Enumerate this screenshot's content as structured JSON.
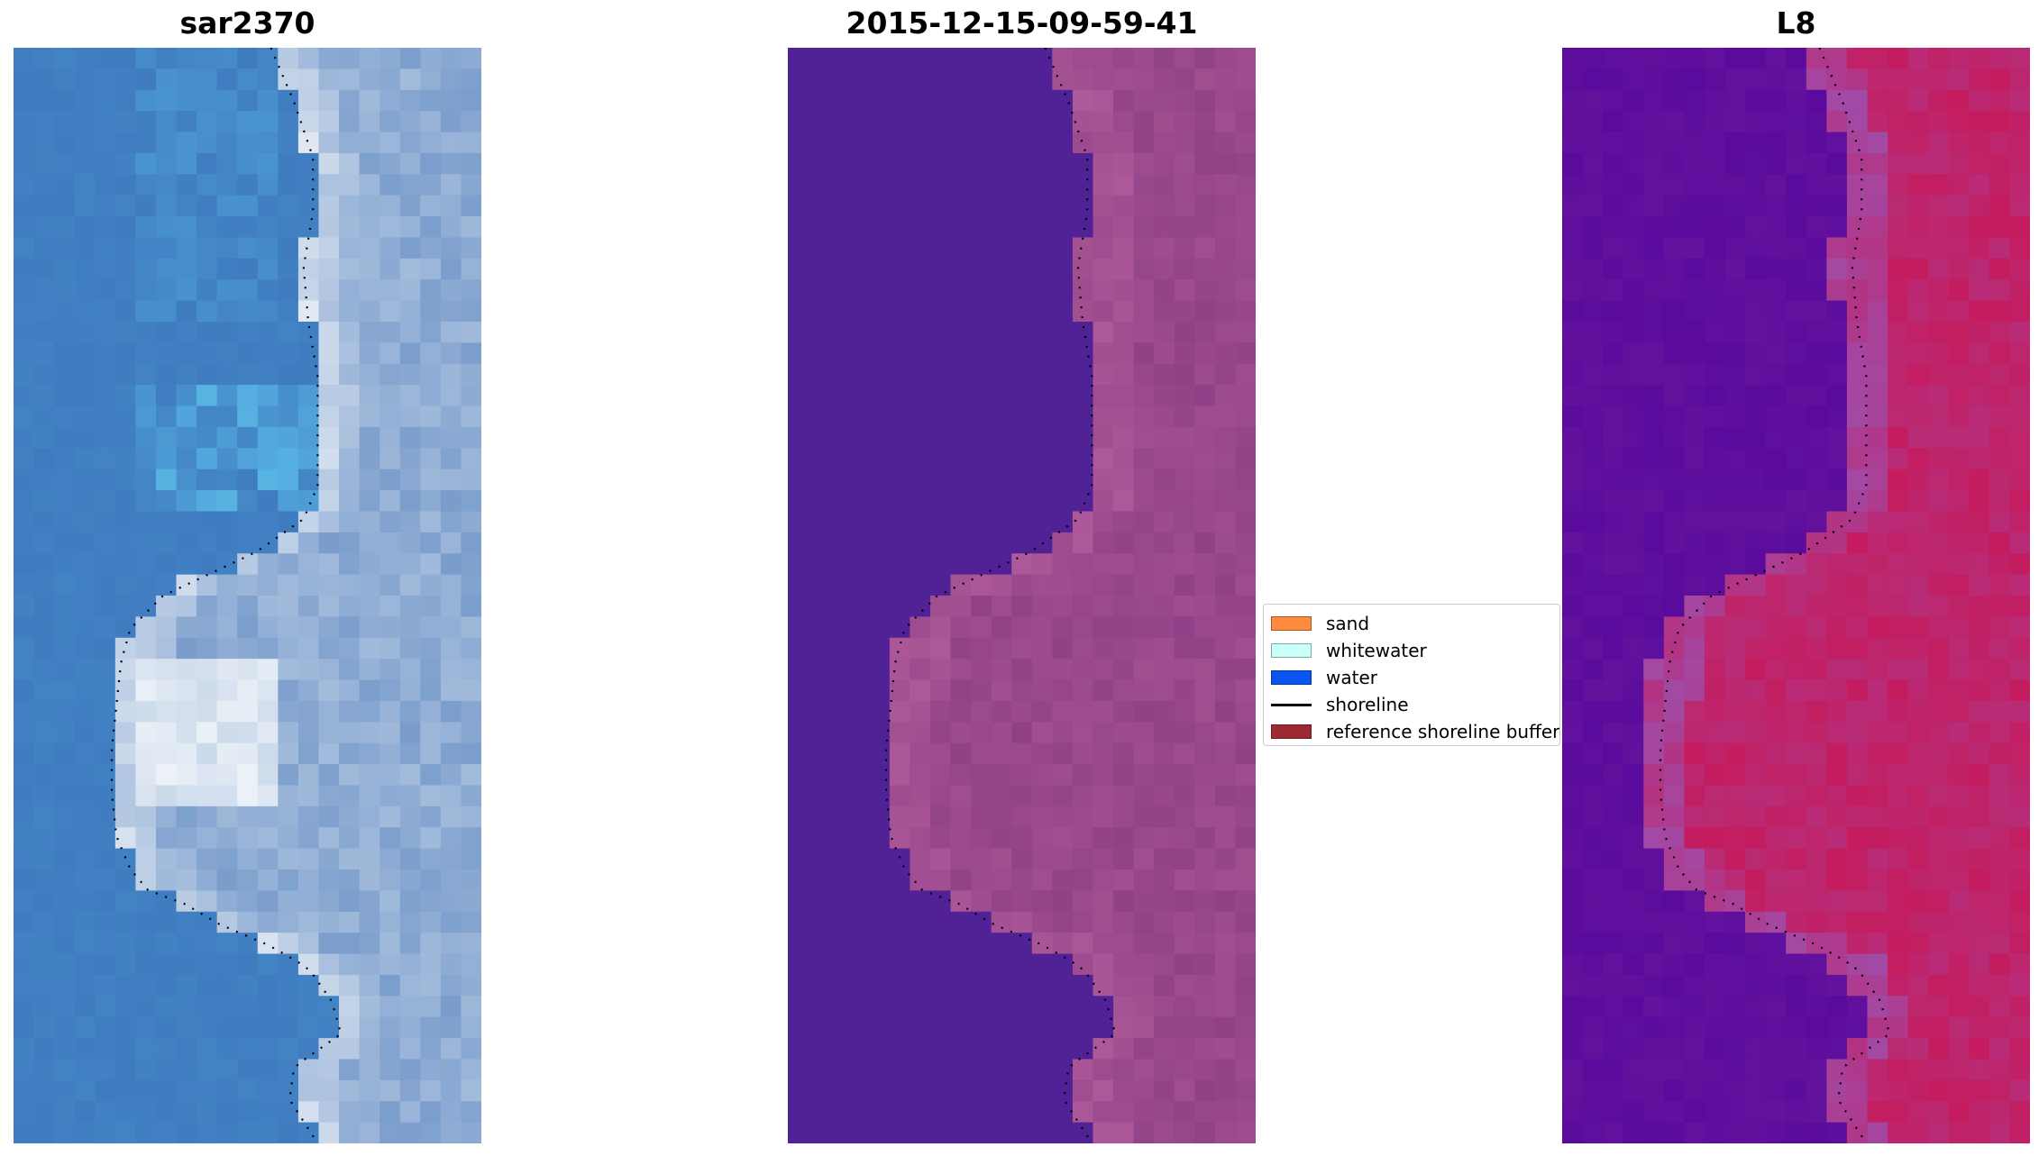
{
  "panels": [
    {
      "title": "sar2370"
    },
    {
      "title": "2015-12-15-09-59-41"
    },
    {
      "title": "L8"
    }
  ],
  "legend": {
    "items": [
      {
        "label": "sand",
        "color": "#ff8c3e",
        "kind": "patch"
      },
      {
        "label": "whitewater",
        "color": "#c8fff8",
        "kind": "patch"
      },
      {
        "label": "water",
        "color": "#0a55f0",
        "kind": "patch"
      },
      {
        "label": "shoreline",
        "color": "#000000",
        "kind": "line"
      },
      {
        "label": "reference shoreline buffer",
        "color": "#9e2a33",
        "kind": "patch"
      }
    ]
  },
  "colors": {
    "rgb_water": "#3d78bd",
    "rgb_light_water": "#5ec2ec",
    "rgb_land": "#7a9dcc",
    "rgb_bright": "#eef3f8",
    "class_water": "#512196",
    "class_land": "#8a3c82",
    "class_land_light": "#b45e9e",
    "ndwi_water": "#5a0a9c",
    "ndwi_land": "#c41c5e",
    "ndwi_edge": "#a24aa6",
    "shoreline": "#000000"
  }
}
